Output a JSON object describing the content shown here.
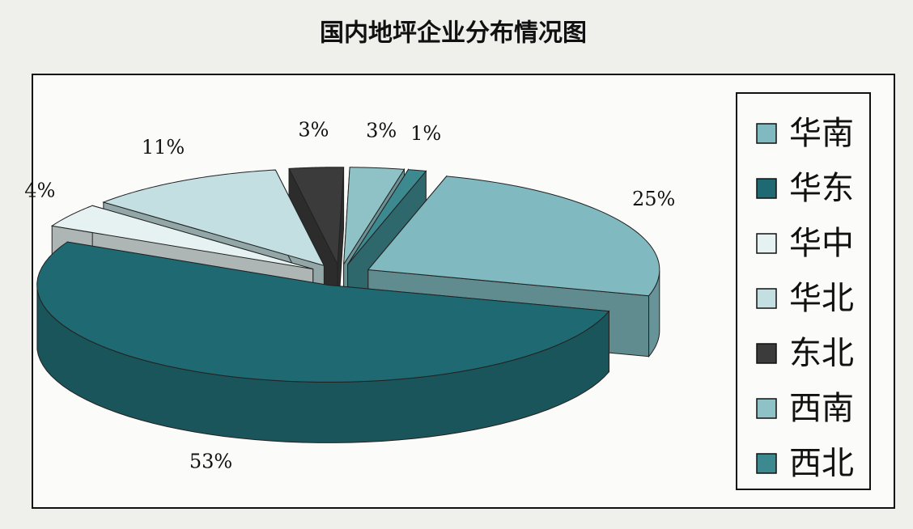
{
  "chart_data": {
    "type": "pie",
    "title": "国内地坪企业分布情况图",
    "categories": [
      "华南",
      "华东",
      "华中",
      "华北",
      "东北",
      "西南",
      "西北"
    ],
    "values": [
      25,
      53,
      4,
      11,
      3,
      3,
      1
    ],
    "value_labels": [
      "25%",
      "53%",
      "4%",
      "11%",
      "3%",
      "3%",
      "1%"
    ],
    "colors": [
      "#80b9bf",
      "#1f6a72",
      "#e6f1f1",
      "#c4dfe1",
      "#3b3b3b",
      "#8ec2c6",
      "#3d8990"
    ]
  }
}
